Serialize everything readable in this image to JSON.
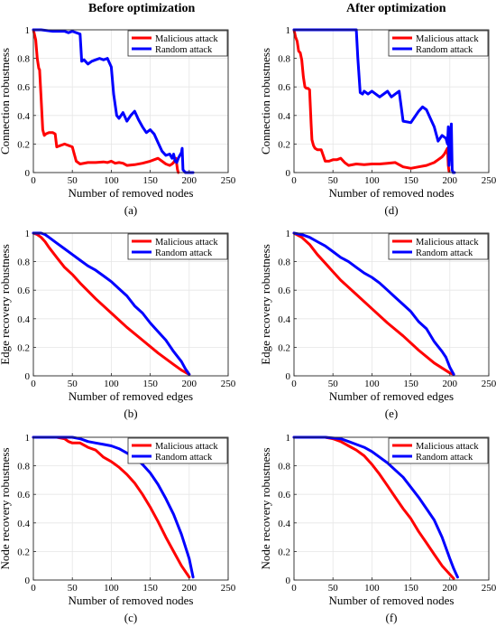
{
  "column_titles": [
    "Before optimization",
    "After optimization"
  ],
  "chart_data": [
    {
      "type": "line",
      "panel_label": "(a)",
      "xlabel": "Number of removed nodes",
      "ylabel": "Connection robustness",
      "xlim": [
        0,
        250
      ],
      "ylim": [
        0,
        1
      ],
      "xticks": [
        0,
        50,
        100,
        150,
        200,
        250
      ],
      "yticks": [
        0,
        0.2,
        0.4,
        0.6,
        0.8,
        1
      ],
      "legend": "top-right",
      "grid": true,
      "series": [
        {
          "name": "Malicious attack",
          "color": "#ff0000",
          "x": [
            0,
            3,
            5,
            7,
            8,
            10,
            12,
            14,
            16,
            20,
            25,
            28,
            30,
            35,
            40,
            45,
            50,
            55,
            60,
            70,
            80,
            90,
            95,
            100,
            105,
            110,
            115,
            120,
            130,
            140,
            150,
            160,
            170,
            175,
            178,
            180,
            183,
            185,
            186
          ],
          "y": [
            1,
            0.93,
            0.8,
            0.73,
            0.72,
            0.52,
            0.3,
            0.26,
            0.27,
            0.28,
            0.28,
            0.27,
            0.18,
            0.19,
            0.2,
            0.19,
            0.18,
            0.08,
            0.06,
            0.07,
            0.07,
            0.075,
            0.07,
            0.08,
            0.065,
            0.07,
            0.065,
            0.05,
            0.055,
            0.065,
            0.08,
            0.1,
            0.06,
            0.05,
            0.06,
            0.07,
            0.1,
            0.02,
            0
          ]
        },
        {
          "name": "Random attack",
          "color": "#0000ff",
          "x": [
            0,
            10,
            25,
            30,
            40,
            45,
            50,
            60,
            62,
            65,
            70,
            75,
            80,
            85,
            90,
            95,
            100,
            103,
            107,
            110,
            115,
            120,
            125,
            130,
            135,
            140,
            145,
            150,
            155,
            160,
            165,
            170,
            175,
            178,
            180,
            182,
            184,
            186,
            188,
            190,
            191,
            192,
            195,
            200,
            205
          ],
          "y": [
            1,
            1,
            0.99,
            0.99,
            0.99,
            0.98,
            0.99,
            0.97,
            0.78,
            0.79,
            0.76,
            0.78,
            0.79,
            0.8,
            0.79,
            0.8,
            0.74,
            0.55,
            0.4,
            0.38,
            0.42,
            0.36,
            0.4,
            0.43,
            0.37,
            0.32,
            0.28,
            0.3,
            0.27,
            0.21,
            0.15,
            0.12,
            0.13,
            0.1,
            0.13,
            0.08,
            0.07,
            0.1,
            0.12,
            0.14,
            0.17,
            0.02,
            0,
            0,
            0
          ]
        }
      ]
    },
    {
      "type": "line",
      "panel_label": "(d)",
      "xlabel": "Number of removed nodes",
      "ylabel": "Connection robustness",
      "xlim": [
        0,
        250
      ],
      "ylim": [
        0,
        1
      ],
      "xticks": [
        0,
        50,
        100,
        150,
        200,
        250
      ],
      "yticks": [
        0,
        0.2,
        0.4,
        0.6,
        0.8,
        1
      ],
      "legend": "top-right",
      "grid": true,
      "series": [
        {
          "name": "Malicious attack",
          "color": "#ff0000",
          "x": [
            0,
            2,
            4,
            6,
            8,
            10,
            12,
            14,
            16,
            18,
            20,
            22,
            23,
            25,
            27,
            30,
            35,
            40,
            45,
            50,
            55,
            60,
            65,
            70,
            80,
            90,
            100,
            110,
            120,
            130,
            140,
            150,
            160,
            170,
            180,
            185,
            190,
            193,
            195,
            197,
            198,
            199
          ],
          "y": [
            1,
            0.95,
            0.92,
            0.85,
            0.84,
            0.79,
            0.67,
            0.6,
            0.59,
            0.59,
            0.58,
            0.34,
            0.23,
            0.19,
            0.17,
            0.16,
            0.16,
            0.08,
            0.08,
            0.09,
            0.09,
            0.1,
            0.07,
            0.05,
            0.06,
            0.055,
            0.06,
            0.06,
            0.065,
            0.07,
            0.04,
            0.03,
            0.04,
            0.05,
            0.07,
            0.09,
            0.11,
            0.13,
            0.15,
            0.17,
            0.05,
            0.01
          ]
        },
        {
          "name": "Random attack",
          "color": "#0000ff",
          "x": [
            0,
            20,
            40,
            60,
            70,
            75,
            80,
            82,
            85,
            88,
            90,
            95,
            100,
            110,
            115,
            120,
            125,
            130,
            135,
            140,
            150,
            155,
            160,
            165,
            170,
            175,
            180,
            185,
            190,
            195,
            197,
            198,
            199,
            200,
            201,
            202,
            203,
            204,
            206
          ],
          "y": [
            1,
            1,
            1,
            1,
            1,
            1,
            1,
            0.8,
            0.56,
            0.55,
            0.57,
            0.55,
            0.57,
            0.53,
            0.55,
            0.57,
            0.53,
            0.55,
            0.57,
            0.36,
            0.35,
            0.39,
            0.43,
            0.46,
            0.44,
            0.38,
            0.32,
            0.22,
            0.26,
            0.24,
            0.2,
            0.32,
            0.05,
            0.15,
            0.28,
            0.34,
            0.02,
            0,
            0
          ]
        }
      ]
    },
    {
      "type": "line",
      "panel_label": "(b)",
      "xlabel": "Number of removed edges",
      "ylabel": "Edge recovery robustness",
      "xlim": [
        0,
        250
      ],
      "ylim": [
        0,
        1
      ],
      "xticks": [
        0,
        50,
        100,
        150,
        200,
        250
      ],
      "yticks": [
        0,
        0.2,
        0.4,
        0.6,
        0.8,
        1
      ],
      "legend": "top-right",
      "grid": true,
      "series": [
        {
          "name": "Malicious attack",
          "color": "#ff0000",
          "x": [
            0,
            5,
            10,
            15,
            20,
            30,
            40,
            50,
            60,
            80,
            100,
            120,
            140,
            160,
            180,
            190,
            200
          ],
          "y": [
            1,
            0.99,
            0.97,
            0.94,
            0.9,
            0.83,
            0.76,
            0.71,
            0.65,
            0.54,
            0.44,
            0.34,
            0.25,
            0.16,
            0.08,
            0.04,
            0.01
          ]
        },
        {
          "name": "Random attack",
          "color": "#0000ff",
          "x": [
            0,
            10,
            15,
            20,
            30,
            40,
            50,
            60,
            70,
            80,
            90,
            100,
            110,
            120,
            130,
            140,
            150,
            160,
            170,
            180,
            190,
            195,
            200
          ],
          "y": [
            1,
            1,
            0.99,
            0.97,
            0.93,
            0.89,
            0.85,
            0.81,
            0.77,
            0.74,
            0.7,
            0.66,
            0.61,
            0.56,
            0.49,
            0.44,
            0.37,
            0.31,
            0.25,
            0.17,
            0.1,
            0.05,
            0.01
          ]
        }
      ]
    },
    {
      "type": "line",
      "panel_label": "(e)",
      "xlabel": "Number of removed edges",
      "ylabel": "Edge recovery robustness",
      "xlim": [
        0,
        250
      ],
      "ylim": [
        0,
        1
      ],
      "xticks": [
        0,
        50,
        100,
        150,
        200,
        250
      ],
      "yticks": [
        0,
        0.2,
        0.4,
        0.6,
        0.8,
        1
      ],
      "legend": "top-right",
      "grid": true,
      "series": [
        {
          "name": "Malicious attack",
          "color": "#ff0000",
          "x": [
            0,
            10,
            20,
            30,
            40,
            50,
            60,
            80,
            100,
            120,
            140,
            160,
            180,
            200,
            205
          ],
          "y": [
            1,
            0.97,
            0.92,
            0.85,
            0.79,
            0.73,
            0.67,
            0.57,
            0.47,
            0.37,
            0.28,
            0.18,
            0.09,
            0.02,
            0.01
          ]
        },
        {
          "name": "Random attack",
          "color": "#0000ff",
          "x": [
            0,
            10,
            20,
            30,
            40,
            50,
            60,
            70,
            80,
            90,
            100,
            110,
            120,
            130,
            140,
            150,
            160,
            170,
            180,
            190,
            195,
            200,
            205
          ],
          "y": [
            1,
            0.99,
            0.97,
            0.94,
            0.91,
            0.87,
            0.83,
            0.8,
            0.76,
            0.72,
            0.69,
            0.65,
            0.6,
            0.55,
            0.5,
            0.45,
            0.38,
            0.33,
            0.24,
            0.17,
            0.13,
            0.06,
            0.01
          ]
        }
      ]
    },
    {
      "type": "line",
      "panel_label": "(c)",
      "xlabel": "Number of removed nodes",
      "ylabel": "Node recovery robustness",
      "xlim": [
        0,
        250
      ],
      "ylim": [
        0,
        1
      ],
      "xticks": [
        0,
        50,
        100,
        150,
        200,
        250
      ],
      "yticks": [
        0,
        0.2,
        0.4,
        0.6,
        0.8,
        1
      ],
      "legend": "top-right",
      "grid": true,
      "series": [
        {
          "name": "Malicious attack",
          "color": "#ff0000",
          "x": [
            0,
            20,
            30,
            40,
            45,
            50,
            60,
            70,
            80,
            90,
            100,
            110,
            120,
            130,
            140,
            150,
            160,
            170,
            180,
            190,
            200
          ],
          "y": [
            1,
            1,
            1,
            0.99,
            0.97,
            0.96,
            0.96,
            0.93,
            0.91,
            0.86,
            0.83,
            0.79,
            0.74,
            0.68,
            0.6,
            0.51,
            0.41,
            0.3,
            0.2,
            0.1,
            0.02
          ]
        },
        {
          "name": "Random attack",
          "color": "#0000ff",
          "x": [
            0,
            20,
            40,
            50,
            60,
            70,
            80,
            90,
            100,
            110,
            120,
            130,
            140,
            150,
            160,
            170,
            180,
            190,
            200,
            205
          ],
          "y": [
            1,
            1,
            1,
            1,
            0.99,
            0.97,
            0.96,
            0.95,
            0.94,
            0.92,
            0.89,
            0.86,
            0.81,
            0.75,
            0.67,
            0.57,
            0.46,
            0.32,
            0.15,
            0.02
          ]
        }
      ]
    },
    {
      "type": "line",
      "panel_label": "(f)",
      "xlabel": "Number of removed nodes",
      "ylabel": "Node recovery robustness",
      "xlim": [
        0,
        250
      ],
      "ylim": [
        0,
        1
      ],
      "xticks": [
        0,
        50,
        100,
        150,
        200,
        250
      ],
      "yticks": [
        0,
        0.2,
        0.4,
        0.6,
        0.8,
        1
      ],
      "legend": "top-right",
      "grid": true,
      "series": [
        {
          "name": "Malicious attack",
          "color": "#ff0000",
          "x": [
            0,
            20,
            40,
            50,
            60,
            70,
            80,
            90,
            100,
            110,
            120,
            130,
            140,
            150,
            160,
            170,
            180,
            190,
            200,
            205
          ],
          "y": [
            1,
            1,
            1,
            0.99,
            0.97,
            0.94,
            0.91,
            0.87,
            0.81,
            0.74,
            0.66,
            0.58,
            0.5,
            0.43,
            0.34,
            0.26,
            0.18,
            0.1,
            0.04,
            0.01
          ]
        },
        {
          "name": "Random attack",
          "color": "#0000ff",
          "x": [
            0,
            20,
            40,
            60,
            70,
            80,
            90,
            100,
            110,
            120,
            130,
            140,
            150,
            160,
            170,
            180,
            190,
            200,
            205,
            210
          ],
          "y": [
            1,
            1,
            1,
            0.99,
            0.97,
            0.95,
            0.93,
            0.9,
            0.86,
            0.82,
            0.77,
            0.72,
            0.65,
            0.58,
            0.5,
            0.42,
            0.3,
            0.15,
            0.08,
            0.02
          ]
        }
      ]
    }
  ]
}
